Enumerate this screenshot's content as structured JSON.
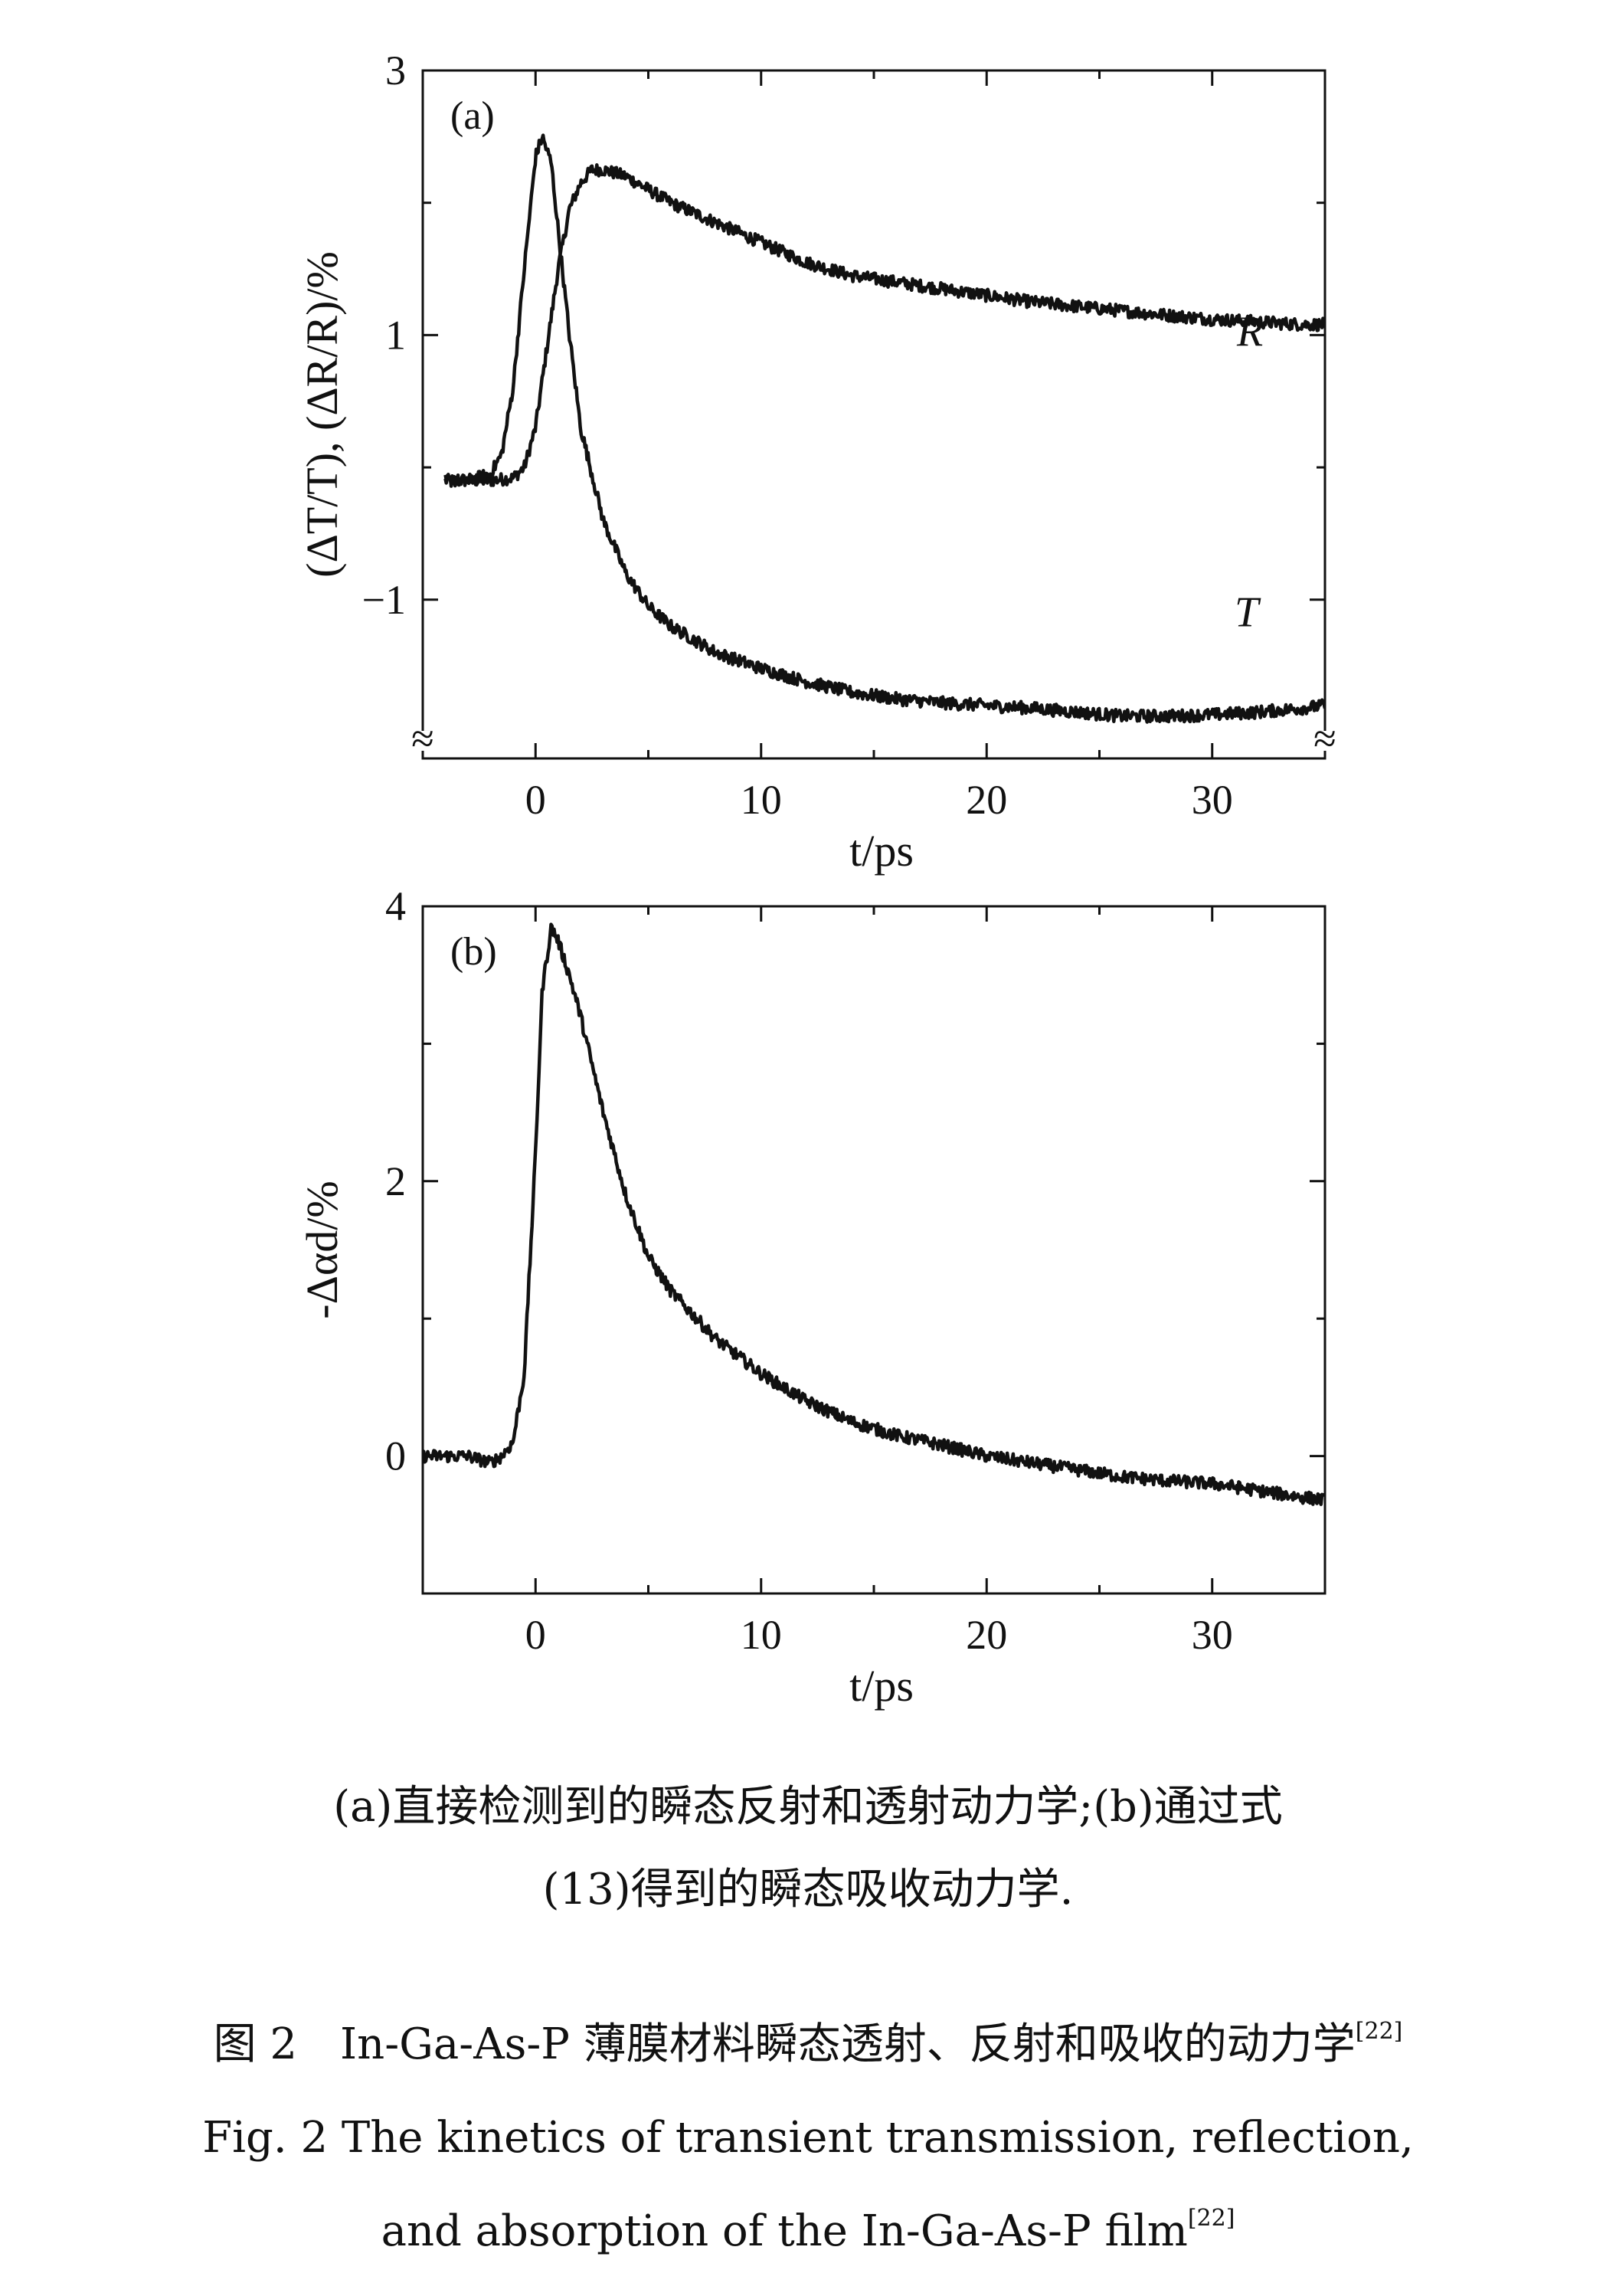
{
  "chart_data": [
    {
      "type": "line",
      "panel_label": "(a)",
      "xlabel": "t/ps",
      "ylabel": "(ΔT/T), (ΔR/R)/%",
      "xlim": [
        -5,
        35
      ],
      "ylim": [
        -2.2,
        3
      ],
      "x_ticks": [
        0,
        10,
        20,
        30
      ],
      "y_ticks": [
        3,
        1,
        -1
      ],
      "axis_break": "≈",
      "grid": false,
      "series": [
        {
          "name": "R",
          "x": [
            -4,
            -2,
            -1,
            -0.5,
            0,
            0.5,
            1,
            1.5,
            2,
            2.5,
            3,
            4,
            5,
            6,
            8,
            10,
            12,
            14,
            16,
            18,
            20,
            22,
            25,
            28,
            30,
            32,
            34,
            35
          ],
          "y": [
            -0.1,
            -0.1,
            -0.08,
            0.0,
            0.3,
            0.9,
            1.5,
            1.95,
            2.15,
            2.25,
            2.25,
            2.2,
            2.1,
            2.0,
            1.85,
            1.7,
            1.55,
            1.45,
            1.4,
            1.35,
            1.3,
            1.25,
            1.2,
            1.15,
            1.12,
            1.1,
            1.08,
            1.08
          ]
        },
        {
          "name": "T",
          "x": [
            -4,
            -3,
            -2,
            -1.5,
            -1,
            -0.5,
            0,
            0.3,
            0.7,
            1,
            1.5,
            2,
            3,
            4,
            5,
            6,
            8,
            10,
            12,
            14,
            16,
            18,
            20,
            22,
            24,
            26,
            28,
            30,
            32,
            34,
            35
          ],
          "y": [
            -0.1,
            -0.1,
            -0.05,
            0.1,
            0.6,
            1.5,
            2.35,
            2.5,
            2.3,
            1.8,
            1.0,
            0.3,
            -0.4,
            -0.8,
            -1.05,
            -1.2,
            -1.4,
            -1.52,
            -1.62,
            -1.7,
            -1.75,
            -1.78,
            -1.8,
            -1.82,
            -1.85,
            -1.88,
            -1.88,
            -1.87,
            -1.85,
            -1.82,
            -1.8
          ]
        }
      ]
    },
    {
      "type": "line",
      "panel_label": "(b)",
      "xlabel": "t/ps",
      "ylabel": "-Δαd/%",
      "xlim": [
        -5,
        35
      ],
      "ylim": [
        -1,
        4
      ],
      "x_ticks": [
        0,
        10,
        20,
        30
      ],
      "y_ticks": [
        4,
        2,
        0
      ],
      "grid": false,
      "series": [
        {
          "name": "",
          "x": [
            -5,
            -3,
            -2,
            -1.5,
            -1,
            -0.5,
            0,
            0.3,
            0.7,
            1,
            1.5,
            2,
            3,
            4,
            5,
            6,
            8,
            10,
            12,
            14,
            16,
            18,
            20,
            22,
            24,
            26,
            28,
            30,
            32,
            34,
            35
          ],
          "y": [
            0,
            0,
            -0.05,
            0,
            0.1,
            0.6,
            2.2,
            3.4,
            3.85,
            3.75,
            3.5,
            3.2,
            2.5,
            1.9,
            1.45,
            1.2,
            0.85,
            0.6,
            0.4,
            0.25,
            0.15,
            0.08,
            0.0,
            -0.05,
            -0.1,
            -0.15,
            -0.18,
            -0.2,
            -0.25,
            -0.3,
            -0.32
          ]
        }
      ]
    }
  ],
  "figure": {
    "sub_caption_line1": "(a)直接检测到的瞬态反射和透射动力学;(b)通过式",
    "sub_caption_line2": "(13)得到的瞬态吸收动力学.",
    "caption_cn": "图 2　In-Ga-As-P 薄膜材料瞬态透射、反射和吸收的动力学",
    "caption_cn_ref": "[22]",
    "caption_en_line1": "Fig. 2  The kinetics of transient transmission, reflection,",
    "caption_en_line2": "and absorption of the In-Ga-As-P film",
    "caption_en_ref": "[22]"
  }
}
